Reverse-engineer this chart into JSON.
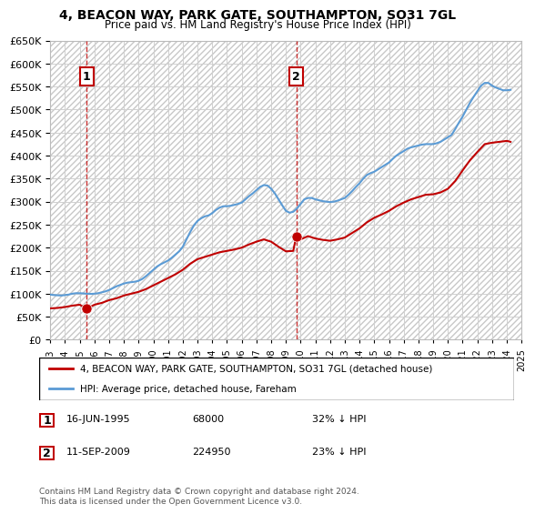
{
  "title": "4, BEACON WAY, PARK GATE, SOUTHAMPTON, SO31 7GL",
  "subtitle": "Price paid vs. HM Land Registry's House Price Index (HPI)",
  "ylabel_ticks": [
    "£0",
    "£50K",
    "£100K",
    "£150K",
    "£200K",
    "£250K",
    "£300K",
    "£350K",
    "£400K",
    "£450K",
    "£500K",
    "£550K",
    "£600K",
    "£650K"
  ],
  "ylim": [
    0,
    650000
  ],
  "ytick_values": [
    0,
    50000,
    100000,
    150000,
    200000,
    250000,
    300000,
    350000,
    400000,
    450000,
    500000,
    550000,
    600000,
    650000
  ],
  "sale1": {
    "date_num": 1995.46,
    "price": 68000,
    "label": "1",
    "pct": "32% ↓ HPI",
    "date_str": "16-JUN-1995"
  },
  "sale2": {
    "date_num": 2009.7,
    "price": 224950,
    "label": "2",
    "pct": "23% ↓ HPI",
    "date_str": "11-SEP-2009"
  },
  "legend1": "4, BEACON WAY, PARK GATE, SOUTHAMPTON, SO31 7GL (detached house)",
  "legend2": "HPI: Average price, detached house, Fareham",
  "footer": "Contains HM Land Registry data © Crown copyright and database right 2024.\nThis data is licensed under the Open Government Licence v3.0.",
  "hpi_color": "#5b9bd5",
  "price_color": "#c00000",
  "vline_color": "#c00000",
  "background_hatch_color": "#e0e0e0",
  "grid_color": "#d0d0d0",
  "sale_marker_color": "#c00000",
  "sale_marker_size": 8,
  "hpi_data": [
    [
      1993.0,
      98000
    ],
    [
      1993.25,
      97000
    ],
    [
      1993.5,
      96500
    ],
    [
      1993.75,
      96000
    ],
    [
      1994.0,
      97000
    ],
    [
      1994.25,
      98000
    ],
    [
      1994.5,
      100000
    ],
    [
      1994.75,
      101000
    ],
    [
      1995.0,
      101000
    ],
    [
      1995.25,
      100500
    ],
    [
      1995.5,
      100000
    ],
    [
      1995.75,
      99500
    ],
    [
      1996.0,
      100000
    ],
    [
      1996.25,
      101000
    ],
    [
      1996.5,
      103000
    ],
    [
      1996.75,
      105000
    ],
    [
      1997.0,
      108000
    ],
    [
      1997.25,
      112000
    ],
    [
      1997.5,
      116000
    ],
    [
      1997.75,
      119000
    ],
    [
      1998.0,
      122000
    ],
    [
      1998.25,
      124000
    ],
    [
      1998.5,
      125000
    ],
    [
      1998.75,
      126000
    ],
    [
      1999.0,
      128000
    ],
    [
      1999.25,
      132000
    ],
    [
      1999.5,
      138000
    ],
    [
      1999.75,
      145000
    ],
    [
      2000.0,
      152000
    ],
    [
      2000.25,
      159000
    ],
    [
      2000.5,
      164000
    ],
    [
      2000.75,
      168000
    ],
    [
      2001.0,
      172000
    ],
    [
      2001.25,
      178000
    ],
    [
      2001.5,
      185000
    ],
    [
      2001.75,
      192000
    ],
    [
      2002.0,
      202000
    ],
    [
      2002.25,
      218000
    ],
    [
      2002.5,
      234000
    ],
    [
      2002.75,
      248000
    ],
    [
      2003.0,
      258000
    ],
    [
      2003.25,
      264000
    ],
    [
      2003.5,
      268000
    ],
    [
      2003.75,
      270000
    ],
    [
      2004.0,
      275000
    ],
    [
      2004.25,
      282000
    ],
    [
      2004.5,
      287000
    ],
    [
      2004.75,
      290000
    ],
    [
      2005.0,
      290000
    ],
    [
      2005.25,
      291000
    ],
    [
      2005.5,
      293000
    ],
    [
      2005.75,
      295000
    ],
    [
      2006.0,
      298000
    ],
    [
      2006.25,
      305000
    ],
    [
      2006.5,
      312000
    ],
    [
      2006.75,
      318000
    ],
    [
      2007.0,
      325000
    ],
    [
      2007.25,
      332000
    ],
    [
      2007.5,
      336000
    ],
    [
      2007.75,
      335000
    ],
    [
      2008.0,
      328000
    ],
    [
      2008.25,
      318000
    ],
    [
      2008.5,
      305000
    ],
    [
      2008.75,
      292000
    ],
    [
      2009.0,
      280000
    ],
    [
      2009.25,
      276000
    ],
    [
      2009.5,
      278000
    ],
    [
      2009.75,
      285000
    ],
    [
      2010.0,
      295000
    ],
    [
      2010.25,
      305000
    ],
    [
      2010.5,
      308000
    ],
    [
      2010.75,
      308000
    ],
    [
      2011.0,
      305000
    ],
    [
      2011.25,
      303000
    ],
    [
      2011.5,
      301000
    ],
    [
      2011.75,
      300000
    ],
    [
      2012.0,
      299000
    ],
    [
      2012.25,
      300000
    ],
    [
      2012.5,
      302000
    ],
    [
      2012.75,
      305000
    ],
    [
      2013.0,
      308000
    ],
    [
      2013.25,
      315000
    ],
    [
      2013.5,
      323000
    ],
    [
      2013.75,
      332000
    ],
    [
      2014.0,
      340000
    ],
    [
      2014.25,
      350000
    ],
    [
      2014.5,
      358000
    ],
    [
      2014.75,
      362000
    ],
    [
      2015.0,
      365000
    ],
    [
      2015.25,
      370000
    ],
    [
      2015.5,
      375000
    ],
    [
      2015.75,
      380000
    ],
    [
      2016.0,
      385000
    ],
    [
      2016.25,
      393000
    ],
    [
      2016.5,
      400000
    ],
    [
      2016.75,
      405000
    ],
    [
      2017.0,
      410000
    ],
    [
      2017.25,
      415000
    ],
    [
      2017.5,
      418000
    ],
    [
      2017.75,
      420000
    ],
    [
      2018.0,
      422000
    ],
    [
      2018.25,
      424000
    ],
    [
      2018.5,
      425000
    ],
    [
      2018.75,
      425000
    ],
    [
      2019.0,
      425000
    ],
    [
      2019.25,
      427000
    ],
    [
      2019.5,
      430000
    ],
    [
      2019.75,
      435000
    ],
    [
      2020.0,
      440000
    ],
    [
      2020.25,
      445000
    ],
    [
      2020.5,
      458000
    ],
    [
      2020.75,
      472000
    ],
    [
      2021.0,
      485000
    ],
    [
      2021.25,
      500000
    ],
    [
      2021.5,
      515000
    ],
    [
      2021.75,
      528000
    ],
    [
      2022.0,
      540000
    ],
    [
      2022.25,
      552000
    ],
    [
      2022.5,
      558000
    ],
    [
      2022.75,
      558000
    ],
    [
      2023.0,
      552000
    ],
    [
      2023.25,
      548000
    ],
    [
      2023.5,
      545000
    ],
    [
      2023.75,
      542000
    ],
    [
      2024.0,
      542000
    ],
    [
      2024.25,
      543000
    ]
  ],
  "price_data": [
    [
      1995.46,
      68000
    ],
    [
      2009.7,
      224950
    ]
  ],
  "price_line_data": [
    [
      1993.0,
      68000
    ],
    [
      1993.5,
      69000
    ],
    [
      1994.0,
      71000
    ],
    [
      1994.5,
      74000
    ],
    [
      1995.0,
      76000
    ],
    [
      1995.46,
      68000
    ],
    [
      1995.75,
      72000
    ],
    [
      1996.0,
      76000
    ],
    [
      1996.5,
      80000
    ],
    [
      1997.0,
      86000
    ],
    [
      1997.5,
      90000
    ],
    [
      1998.0,
      96000
    ],
    [
      1998.5,
      100000
    ],
    [
      1999.0,
      104000
    ],
    [
      1999.5,
      110000
    ],
    [
      2000.0,
      118000
    ],
    [
      2000.5,
      126000
    ],
    [
      2001.0,
      134000
    ],
    [
      2001.5,
      142000
    ],
    [
      2002.0,
      152000
    ],
    [
      2002.5,
      165000
    ],
    [
      2003.0,
      175000
    ],
    [
      2003.5,
      180000
    ],
    [
      2004.0,
      185000
    ],
    [
      2004.5,
      190000
    ],
    [
      2005.0,
      193000
    ],
    [
      2005.5,
      196000
    ],
    [
      2006.0,
      200000
    ],
    [
      2006.5,
      207000
    ],
    [
      2007.0,
      213000
    ],
    [
      2007.5,
      218000
    ],
    [
      2008.0,
      213000
    ],
    [
      2008.5,
      202000
    ],
    [
      2009.0,
      192000
    ],
    [
      2009.5,
      193000
    ],
    [
      2009.7,
      224950
    ],
    [
      2010.0,
      218000
    ],
    [
      2010.5,
      225000
    ],
    [
      2011.0,
      220000
    ],
    [
      2011.5,
      217000
    ],
    [
      2012.0,
      215000
    ],
    [
      2012.5,
      218000
    ],
    [
      2013.0,
      222000
    ],
    [
      2013.5,
      232000
    ],
    [
      2014.0,
      242000
    ],
    [
      2014.5,
      255000
    ],
    [
      2015.0,
      265000
    ],
    [
      2015.5,
      272000
    ],
    [
      2016.0,
      280000
    ],
    [
      2016.5,
      290000
    ],
    [
      2017.0,
      298000
    ],
    [
      2017.5,
      305000
    ],
    [
      2018.0,
      310000
    ],
    [
      2018.5,
      315000
    ],
    [
      2019.0,
      316000
    ],
    [
      2019.5,
      320000
    ],
    [
      2020.0,
      328000
    ],
    [
      2020.5,
      345000
    ],
    [
      2021.0,
      368000
    ],
    [
      2021.5,
      390000
    ],
    [
      2022.0,
      408000
    ],
    [
      2022.5,
      425000
    ],
    [
      2023.0,
      428000
    ],
    [
      2023.5,
      430000
    ],
    [
      2024.0,
      432000
    ],
    [
      2024.25,
      430000
    ]
  ],
  "xlim": [
    1993.0,
    2025.0
  ],
  "xtick_years": [
    1993,
    1994,
    1995,
    1996,
    1997,
    1998,
    1999,
    2000,
    2001,
    2002,
    2003,
    2004,
    2005,
    2006,
    2007,
    2008,
    2009,
    2010,
    2011,
    2012,
    2013,
    2014,
    2015,
    2016,
    2017,
    2018,
    2019,
    2020,
    2021,
    2022,
    2023,
    2024,
    2025
  ]
}
